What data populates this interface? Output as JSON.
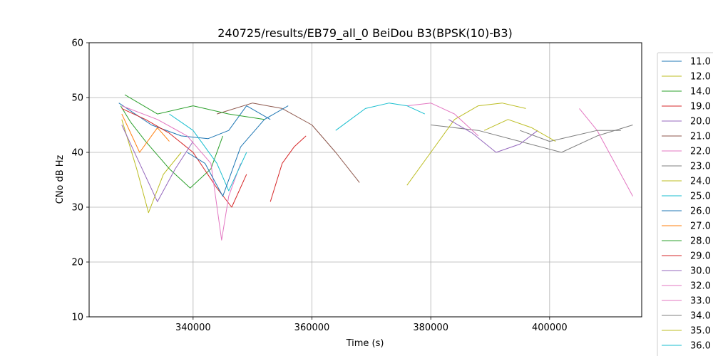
{
  "chart_data": {
    "type": "line",
    "title": "240725/results/EB79_all_0 BeiDou B3(BPSK(10)-B3)",
    "xlabel": "Time (s)",
    "ylabel": "CNo dB Hz",
    "xlim": [
      322500,
      415500
    ],
    "ylim": [
      10,
      60
    ],
    "xticks": [
      340000,
      360000,
      380000,
      400000
    ],
    "xtick_labels": [
      "340000",
      "360000",
      "380000",
      "400000"
    ],
    "yticks": [
      10,
      20,
      30,
      40,
      50,
      60
    ],
    "ytick_labels": [
      "10",
      "20",
      "30",
      "40",
      "50",
      "60"
    ],
    "grid": true,
    "legend_placement": "right-outside",
    "series": [
      {
        "name": "11.0",
        "color": "#1f77b4",
        "x": [
          327500,
          333000,
          338000,
          342500,
          346000,
          349000,
          353000
        ],
        "y": [
          49.0,
          45.0,
          43.0,
          42.5,
          44.0,
          48.5,
          46.0
        ]
      },
      {
        "name": "12.0",
        "color": "#bcbd22",
        "x": [
          328000,
          330500,
          332500,
          335000,
          338000
        ],
        "y": [
          46.0,
          37.0,
          29.0,
          36.0,
          40.0
        ]
      },
      {
        "name": "14.0",
        "color": "#2ca02c",
        "x": [
          327800,
          329500,
          332000,
          336000,
          339500,
          343000,
          345000
        ],
        "y": [
          48.5,
          45.5,
          42.0,
          37.0,
          33.5,
          37.0,
          43.0
        ]
      },
      {
        "name": "19.0",
        "color": "#d62728",
        "x": [
          328000,
          332000,
          336000,
          340000,
          344000,
          346500,
          349000
        ],
        "y": [
          48.0,
          46.0,
          43.5,
          40.0,
          33.5,
          30.0,
          36.0
        ]
      },
      {
        "name": "20.0",
        "color": "#9467bd",
        "x": [
          328000,
          331000,
          334000,
          337000,
          340000
        ],
        "y": [
          45.0,
          38.0,
          31.0,
          37.0,
          42.0
        ]
      },
      {
        "name": "21.0",
        "color": "#8c564b",
        "x": [
          344000,
          350000,
          355000,
          360000,
          364000,
          368000
        ],
        "y": [
          47.0,
          49.0,
          48.0,
          45.0,
          40.0,
          34.5
        ]
      },
      {
        "name": "22.0",
        "color": "#e377c2",
        "x": [
          328000,
          334000,
          339000,
          343000,
          344800,
          346000,
          348000
        ],
        "y": [
          48.5,
          46.0,
          43.0,
          38.0,
          24.0,
          32.0,
          38.0
        ]
      },
      {
        "name": "23.0",
        "color": "#7f7f7f",
        "x": [
          380000,
          388000,
          395000,
          402000,
          408000,
          414000
        ],
        "y": [
          45.0,
          44.0,
          42.0,
          40.0,
          43.0,
          45.0
        ]
      },
      {
        "name": "24.0",
        "color": "#bcbd22",
        "x": [
          376000,
          380000,
          384000,
          388000,
          392000,
          396000
        ],
        "y": [
          34.0,
          40.0,
          46.0,
          48.5,
          49.0,
          48.0
        ]
      },
      {
        "name": "25.0",
        "color": "#17becf",
        "x": [
          336000,
          340000,
          344000,
          346000,
          349000
        ],
        "y": [
          47.0,
          44.0,
          38.0,
          33.0,
          40.0
        ]
      },
      {
        "name": "26.0",
        "color": "#1f77b4",
        "x": [
          339000,
          342000,
          345000,
          348000,
          352000,
          356000
        ],
        "y": [
          40.0,
          38.0,
          32.0,
          41.0,
          46.0,
          48.5
        ]
      },
      {
        "name": "27.0",
        "color": "#ff7f0e",
        "x": [
          328000,
          331000,
          334000,
          336000
        ],
        "y": [
          47.0,
          40.0,
          44.5,
          42.0
        ]
      },
      {
        "name": "28.0",
        "color": "#2ca02c",
        "x": [
          328500,
          334000,
          340000,
          346000,
          352000
        ],
        "y": [
          50.5,
          47.0,
          48.5,
          47.0,
          46.0
        ]
      },
      {
        "name": "29.0",
        "color": "#d62728",
        "x": [
          353000,
          355000,
          357000,
          359000
        ],
        "y": [
          31.0,
          38.0,
          41.0,
          43.0
        ]
      },
      {
        "name": "30.0",
        "color": "#9467bd",
        "x": [
          383000,
          387000,
          391000,
          395000,
          398000
        ],
        "y": [
          46.0,
          43.5,
          40.0,
          41.5,
          44.0
        ]
      },
      {
        "name": "32.0",
        "color": "#e377c2",
        "x": [
          376000,
          380000,
          384000,
          388000
        ],
        "y": [
          48.5,
          49.0,
          47.0,
          43.0
        ]
      },
      {
        "name": "33.0",
        "color": "#e377c2",
        "x": [
          405000,
          408000,
          411000,
          414000
        ],
        "y": [
          48.0,
          44.0,
          38.0,
          32.0
        ]
      },
      {
        "name": "34.0",
        "color": "#7f7f7f",
        "x": [
          395000,
          400000,
          404000,
          408000,
          412000
        ],
        "y": [
          44.0,
          42.0,
          43.0,
          44.0,
          44.0
        ]
      },
      {
        "name": "35.0",
        "color": "#bcbd22",
        "x": [
          389000,
          393000,
          397000,
          401000
        ],
        "y": [
          44.0,
          46.0,
          44.5,
          42.0
        ]
      },
      {
        "name": "36.0",
        "color": "#17becf",
        "x": [
          364000,
          369000,
          373000,
          376000,
          379000
        ],
        "y": [
          44.0,
          48.0,
          49.0,
          48.5,
          47.0
        ]
      }
    ]
  }
}
